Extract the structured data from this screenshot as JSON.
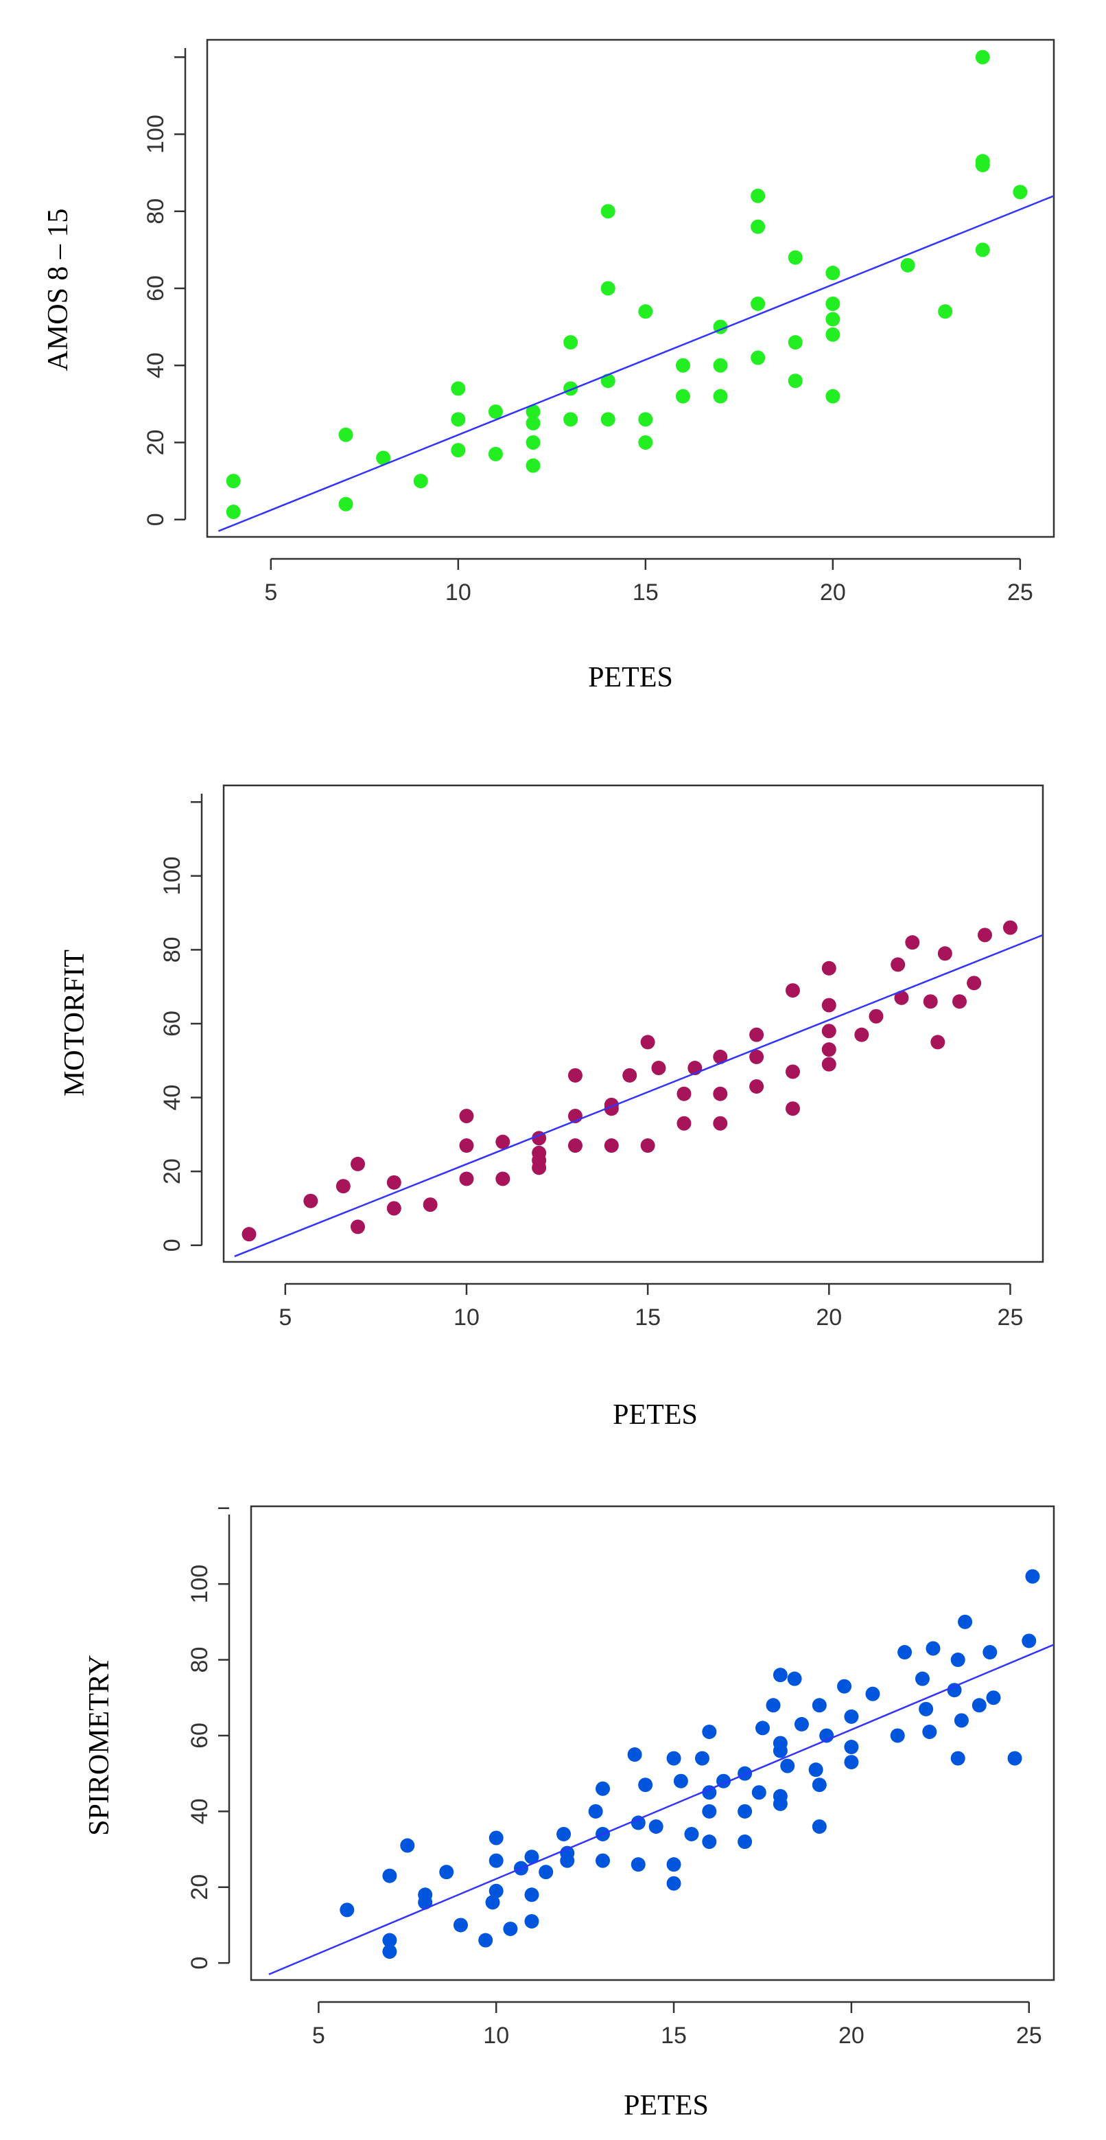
{
  "chart_data": [
    {
      "type": "scatter",
      "xlabel": "PETES",
      "ylabel": "AMOS 8 – 15",
      "xlim": [
        3.3,
        25.9
      ],
      "ylim": [
        -4.5,
        124.5
      ],
      "x_ticks": [
        5,
        10,
        15,
        20,
        25
      ],
      "y_ticks": [
        0,
        20,
        40,
        60,
        80,
        100
      ],
      "point_color": "#22ee22",
      "line_color": "#3333ff",
      "fit_line": {
        "x0": 3.6,
        "y0": -3,
        "x1": 25.9,
        "y1": 84
      },
      "points": [
        [
          4,
          10
        ],
        [
          4,
          2
        ],
        [
          7,
          22
        ],
        [
          7,
          4
        ],
        [
          8,
          16
        ],
        [
          9,
          10
        ],
        [
          10,
          34
        ],
        [
          10,
          26
        ],
        [
          10,
          18
        ],
        [
          11,
          28
        ],
        [
          11,
          17
        ],
        [
          12,
          28
        ],
        [
          12,
          25
        ],
        [
          12,
          20
        ],
        [
          12,
          14
        ],
        [
          13,
          46
        ],
        [
          13,
          34
        ],
        [
          13,
          26
        ],
        [
          14,
          80
        ],
        [
          14,
          60
        ],
        [
          14,
          36
        ],
        [
          14,
          26
        ],
        [
          15,
          54
        ],
        [
          15,
          26
        ],
        [
          15,
          20
        ],
        [
          16,
          40
        ],
        [
          16,
          32
        ],
        [
          17,
          50
        ],
        [
          17,
          40
        ],
        [
          17,
          32
        ],
        [
          18,
          84
        ],
        [
          18,
          76
        ],
        [
          18,
          56
        ],
        [
          18,
          42
        ],
        [
          19,
          68
        ],
        [
          19,
          46
        ],
        [
          19,
          36
        ],
        [
          20,
          64
        ],
        [
          20,
          56
        ],
        [
          20,
          52
        ],
        [
          20,
          48
        ],
        [
          20,
          32
        ],
        [
          22,
          66
        ],
        [
          23,
          54
        ],
        [
          24,
          120
        ],
        [
          24,
          93
        ],
        [
          24,
          92
        ],
        [
          24,
          70
        ],
        [
          25,
          85
        ]
      ]
    },
    {
      "type": "scatter",
      "xlabel": "PETES",
      "ylabel": "MOTORFIT",
      "xlim": [
        3.3,
        25.9
      ],
      "ylim": [
        -4.5,
        124.5
      ],
      "x_ticks": [
        5,
        10,
        15,
        20,
        25
      ],
      "y_ticks": [
        0,
        20,
        40,
        60,
        80,
        100
      ],
      "point_color": "#a8145a",
      "line_color": "#3333ff",
      "fit_line": {
        "x0": 3.6,
        "y0": -3,
        "x1": 25.9,
        "y1": 84
      },
      "points": [
        [
          4,
          3
        ],
        [
          5.7,
          12
        ],
        [
          6.6,
          16
        ],
        [
          7,
          22
        ],
        [
          7,
          5
        ],
        [
          8,
          17
        ],
        [
          8,
          10
        ],
        [
          9,
          11
        ],
        [
          10,
          35
        ],
        [
          10,
          27
        ],
        [
          10,
          18
        ],
        [
          11,
          28
        ],
        [
          11,
          18
        ],
        [
          12,
          29
        ],
        [
          12,
          25
        ],
        [
          12,
          23
        ],
        [
          12,
          21
        ],
        [
          13,
          46
        ],
        [
          13,
          35
        ],
        [
          13,
          27
        ],
        [
          14,
          38
        ],
        [
          14,
          37
        ],
        [
          14,
          27
        ],
        [
          14.5,
          46
        ],
        [
          15,
          55
        ],
        [
          15,
          27
        ],
        [
          15.3,
          48
        ],
        [
          16,
          41
        ],
        [
          16,
          33
        ],
        [
          16.3,
          48
        ],
        [
          17,
          51
        ],
        [
          17,
          41
        ],
        [
          17,
          33
        ],
        [
          18,
          57
        ],
        [
          18,
          51
        ],
        [
          18,
          43
        ],
        [
          19,
          69
        ],
        [
          19,
          47
        ],
        [
          19,
          37
        ],
        [
          20,
          75
        ],
        [
          20,
          65
        ],
        [
          20,
          58
        ],
        [
          20,
          53
        ],
        [
          20,
          49
        ],
        [
          20.9,
          57
        ],
        [
          21.3,
          62
        ],
        [
          21.9,
          76
        ],
        [
          22,
          67
        ],
        [
          22.3,
          82
        ],
        [
          22.8,
          66
        ],
        [
          23,
          55
        ],
        [
          23.2,
          79
        ],
        [
          23.6,
          66
        ],
        [
          24,
          71
        ],
        [
          24.3,
          84
        ],
        [
          25,
          86
        ]
      ]
    },
    {
      "type": "scatter",
      "xlabel": "PETES",
      "ylabel": "SPIROMETRY",
      "xlim": [
        3.1,
        25.7
      ],
      "ylim": [
        -4.5,
        120.5
      ],
      "x_ticks": [
        5,
        10,
        15,
        20,
        25
      ],
      "y_ticks": [
        0,
        20,
        40,
        60,
        80,
        100
      ],
      "point_color": "#0055dd",
      "line_color": "#3333ff",
      "fit_line": {
        "x0": 3.6,
        "y0": -3,
        "x1": 25.7,
        "y1": 84
      },
      "points": [
        [
          5.8,
          14
        ],
        [
          7,
          23
        ],
        [
          7,
          6
        ],
        [
          7,
          3
        ],
        [
          7.5,
          31
        ],
        [
          8,
          18
        ],
        [
          8,
          16
        ],
        [
          8.6,
          24
        ],
        [
          9,
          10
        ],
        [
          9.7,
          6
        ],
        [
          9.9,
          16
        ],
        [
          10,
          33
        ],
        [
          10,
          27
        ],
        [
          10,
          19
        ],
        [
          10.4,
          9
        ],
        [
          10.7,
          25
        ],
        [
          11,
          28
        ],
        [
          11,
          18
        ],
        [
          11,
          11
        ],
        [
          11.4,
          24
        ],
        [
          11.9,
          34
        ],
        [
          12,
          29
        ],
        [
          12,
          27
        ],
        [
          12.8,
          40
        ],
        [
          13,
          46
        ],
        [
          13,
          34
        ],
        [
          13,
          27
        ],
        [
          13.9,
          55
        ],
        [
          14,
          37
        ],
        [
          14,
          26
        ],
        [
          14.2,
          47
        ],
        [
          14.5,
          36
        ],
        [
          15,
          54
        ],
        [
          15,
          26
        ],
        [
          15,
          21
        ],
        [
          15.2,
          48
        ],
        [
          15.5,
          34
        ],
        [
          15.8,
          54
        ],
        [
          16,
          61
        ],
        [
          16,
          45
        ],
        [
          16,
          32
        ],
        [
          16,
          40
        ],
        [
          16.4,
          48
        ],
        [
          17,
          50
        ],
        [
          17,
          40
        ],
        [
          17,
          32
        ],
        [
          17.4,
          45
        ],
        [
          17.5,
          62
        ],
        [
          17.8,
          68
        ],
        [
          18,
          76
        ],
        [
          18,
          58
        ],
        [
          18,
          56
        ],
        [
          18,
          44
        ],
        [
          18,
          42
        ],
        [
          18.2,
          52
        ],
        [
          18.4,
          75
        ],
        [
          18.6,
          63
        ],
        [
          19,
          51
        ],
        [
          19.1,
          68
        ],
        [
          19.1,
          47
        ],
        [
          19.1,
          36
        ],
        [
          19.3,
          60
        ],
        [
          19.8,
          73
        ],
        [
          20,
          65
        ],
        [
          20,
          57
        ],
        [
          20,
          53
        ],
        [
          20.6,
          71
        ],
        [
          21.3,
          60
        ],
        [
          21.5,
          82
        ],
        [
          22,
          75
        ],
        [
          22.1,
          67
        ],
        [
          22.2,
          61
        ],
        [
          22.3,
          83
        ],
        [
          22.9,
          72
        ],
        [
          23,
          54
        ],
        [
          23,
          80
        ],
        [
          23.1,
          64
        ],
        [
          23.2,
          90
        ],
        [
          23.6,
          68
        ],
        [
          23.9,
          82
        ],
        [
          24,
          70
        ],
        [
          24.6,
          54
        ],
        [
          25,
          85
        ],
        [
          25.1,
          102
        ]
      ]
    }
  ]
}
